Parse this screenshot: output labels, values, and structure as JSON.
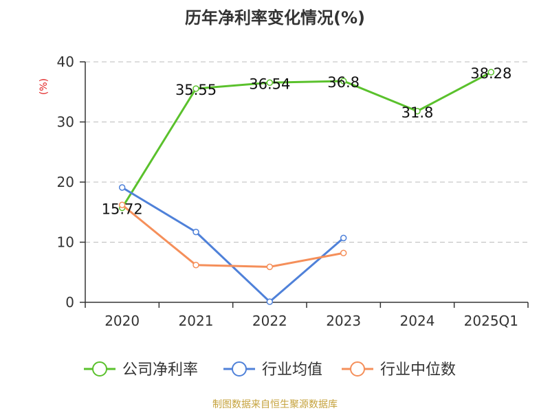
{
  "chart_data": {
    "type": "line",
    "title": "历年净利率变化情况(%)",
    "ylabel": "(%)",
    "xlabel": "",
    "categories": [
      "2020",
      "2021",
      "2022",
      "2023",
      "2024",
      "2025Q1"
    ],
    "ylim": [
      0,
      40
    ],
    "yticks": [
      0,
      10,
      20,
      30,
      40
    ],
    "grid": true,
    "legend_position": "bottom",
    "series": [
      {
        "name": "公司净利率",
        "color": "#5ac12c",
        "values": [
          15.72,
          35.55,
          36.54,
          36.8,
          31.8,
          38.28
        ],
        "labels": [
          "15.72",
          "35.55",
          "36.54",
          "36.8",
          "31.8",
          "38.28"
        ]
      },
      {
        "name": "行业均值",
        "color": "#4f81d9",
        "values": [
          19.1,
          11.7,
          0.1,
          10.7,
          null,
          null
        ]
      },
      {
        "name": "行业中位数",
        "color": "#f58f5a",
        "values": [
          16.2,
          6.2,
          5.9,
          8.2,
          null,
          null
        ]
      }
    ]
  },
  "footer": "制图数据来自恒生聚源数据库",
  "colors": {
    "title": "#333333",
    "ylabel": "#e02020",
    "axis": "#333333",
    "grid": "#bbbbbb",
    "footer": "#c5a23c"
  }
}
